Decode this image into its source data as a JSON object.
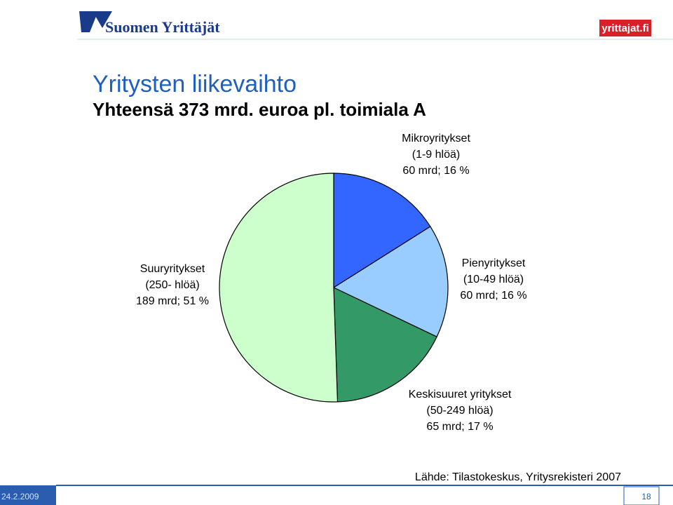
{
  "header": {
    "logo": "Suomen Yrittäjät",
    "site": "yrittajat.fi"
  },
  "chart_data": {
    "type": "pie",
    "title": "Yritysten liikevaihto",
    "subtitle": "Yhteensä 373 mrd. euroa pl. toimiala A",
    "categories": [
      "Mikroyritykset",
      "Pienyritykset",
      "Keskisuuret yritykset",
      "Suuryritykset"
    ],
    "sublabels": [
      "(1-9 hlöä)",
      "(10-49 hlöä)",
      "(50-249 hlöä)",
      "(250- hlöä)"
    ],
    "values": [
      60,
      60,
      65,
      189
    ],
    "value_labels": [
      "60 mrd; 16 %",
      "60 mrd; 16 %",
      "65 mrd; 17 %",
      "189 mrd; 51 %"
    ],
    "colors": [
      "#3366ff",
      "#99ccff",
      "#339966",
      "#ccffcc"
    ],
    "source": "Lähde: Tilastokeskus, Yritysrekisteri 2007"
  },
  "footer": {
    "date": "24.2.2009",
    "page": "18"
  }
}
